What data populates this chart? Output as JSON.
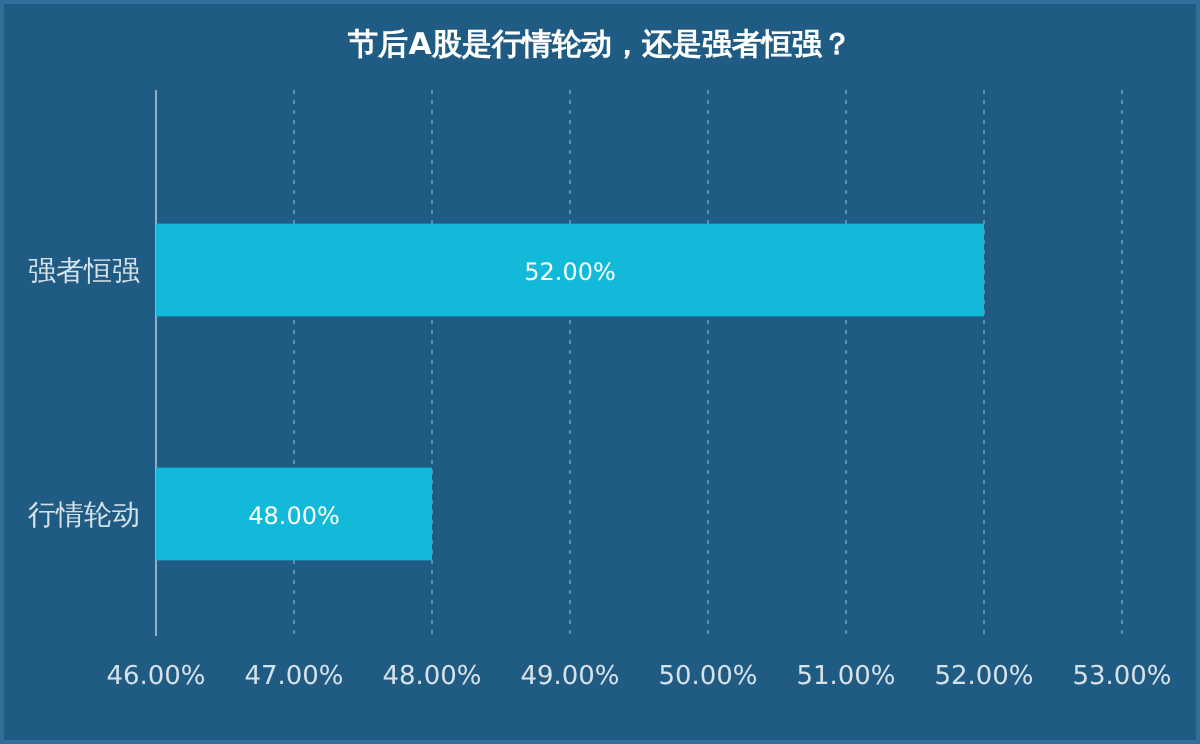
{
  "chart_data": {
    "type": "bar",
    "orientation": "horizontal",
    "title": "节后A股是行情轮动，还是强者恒强？",
    "categories": [
      "强者恒强",
      "行情轮动"
    ],
    "values": [
      52,
      48
    ],
    "value_labels": [
      "52.00%",
      "48.00%"
    ],
    "color": "#12b9d9",
    "xlim": [
      46,
      53
    ],
    "xticks": [
      {
        "value": 46,
        "label": "46.00%"
      },
      {
        "value": 47,
        "label": "47.00%"
      },
      {
        "value": 48,
        "label": "48.00%"
      },
      {
        "value": 49,
        "label": "49.00%"
      },
      {
        "value": 50,
        "label": "50.00%"
      },
      {
        "value": 51,
        "label": "51.00%"
      },
      {
        "value": 52,
        "label": "52.00%"
      },
      {
        "value": 53,
        "label": "53.00%"
      }
    ],
    "grid": "x"
  }
}
